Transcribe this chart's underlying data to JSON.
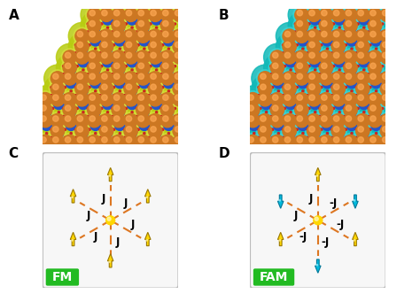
{
  "fig_width": 4.74,
  "fig_height": 3.32,
  "dpi": 100,
  "panel_labels": [
    "A",
    "B",
    "C",
    "D"
  ],
  "panel_label_fontsize": 11,
  "panel_label_fontweight": "bold",
  "fm_label": "FM",
  "fam_label": "FAM",
  "label_bg_color": "#22bb22",
  "yellow": "#FFD700",
  "cyan": "#00BBDD",
  "dash_color": "#DD7722",
  "J_fontsize": 7,
  "box_bg": "#f7f7f7",
  "box_edge": "#bbbbbb",
  "white_bg": "#ffffff",
  "panel_A_bg": "#ddeeff",
  "panel_B_bg": "#ddfaff",
  "orange_atom": "#cc7722",
  "orange_hl": "#ffaa55",
  "blue_atom": "#2255cc",
  "blue_hl": "#6688ff",
  "gray_atom": "#bbbbbb",
  "red_dot": "#cc2222",
  "bond_color": "#aaaaaa",
  "iso_A_outer": "#b8cc10",
  "iso_A_inner": "#d8e040",
  "iso_B_outer": "#10b8b8",
  "iso_B_inner": "#40d8d8",
  "fm_spins": [
    {
      "ang": 90,
      "up": true,
      "yellow": true
    },
    {
      "ang": 30,
      "up": true,
      "yellow": true
    },
    {
      "ang": -30,
      "up": true,
      "yellow": true
    },
    {
      "ang": -90,
      "up": true,
      "yellow": true
    },
    {
      "ang": -150,
      "up": true,
      "yellow": true
    },
    {
      "ang": 150,
      "up": true,
      "yellow": true
    }
  ],
  "fam_spins": [
    {
      "ang": 90,
      "up": true,
      "yellow": true
    },
    {
      "ang": 30,
      "up": false,
      "yellow": false
    },
    {
      "ang": -30,
      "up": true,
      "yellow": true
    },
    {
      "ang": -90,
      "up": false,
      "yellow": false
    },
    {
      "ang": -150,
      "up": true,
      "yellow": true
    },
    {
      "ang": 150,
      "up": false,
      "yellow": false
    }
  ],
  "fam_J_labels": [
    "J",
    "-J",
    "-J",
    "-J",
    "-J",
    "J"
  ],
  "fm_J_labels": [
    "J",
    "J",
    "J",
    "J",
    "J",
    "J"
  ]
}
